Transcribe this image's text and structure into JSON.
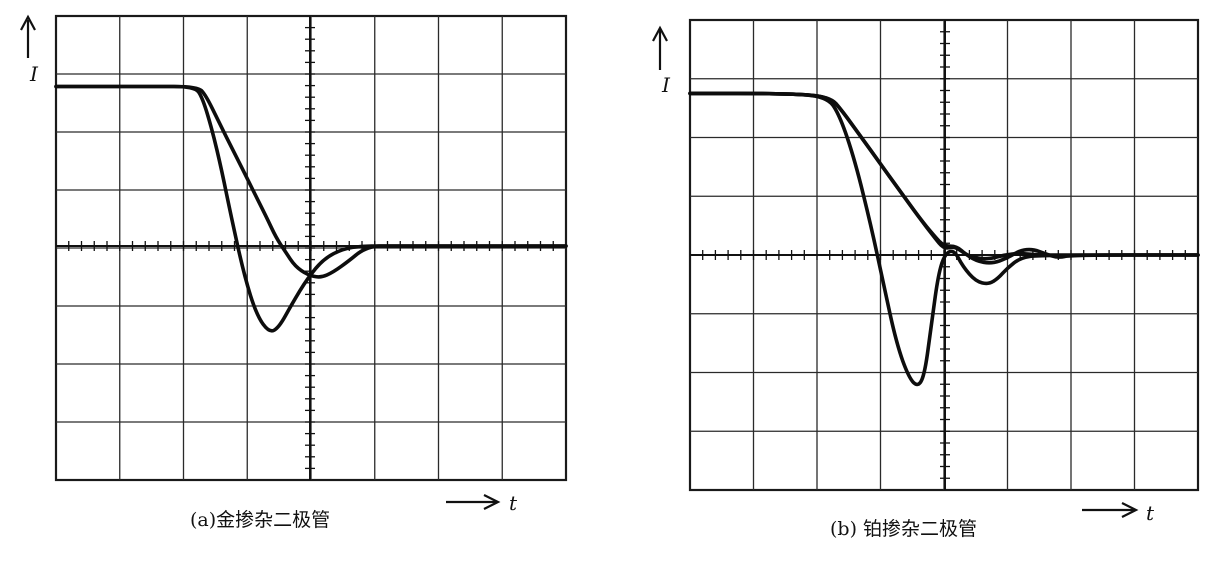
{
  "figure": {
    "panels": [
      {
        "id": "a",
        "caption": "(a)金掺杂二极管",
        "y_axis_label": "I",
        "x_axis_label": "t"
      },
      {
        "id": "b",
        "caption": "(b) 铂掺杂二极管",
        "y_axis_label": "I",
        "x_axis_label": "t"
      }
    ]
  },
  "chart_data": [
    {
      "type": "line",
      "title": "(a)金掺杂二极管",
      "xlabel": "t",
      "ylabel": "I",
      "grid": true,
      "divisions": {
        "x": 8,
        "y": 8
      },
      "xlim": [
        0,
        8
      ],
      "ylim": [
        -4,
        4
      ],
      "series": [
        {
          "x": [
            0,
            1.5,
            2.22,
            2.35,
            2.55,
            2.8,
            3.05,
            3.3,
            3.45,
            3.6,
            3.75,
            3.95,
            4.15,
            4.35,
            4.6,
            4.8,
            5.0,
            5.15,
            8.0
          ],
          "y": [
            2.75,
            2.75,
            2.75,
            2.6,
            2.15,
            1.6,
            1.05,
            0.5,
            0.15,
            -0.1,
            -0.35,
            -0.5,
            -0.55,
            -0.45,
            -0.25,
            -0.07,
            0.0,
            0.0,
            0.0
          ]
        },
        {
          "x": [
            0,
            1.5,
            2.18,
            2.3,
            2.45,
            2.6,
            2.75,
            2.95,
            3.15,
            3.35,
            3.5,
            3.7,
            3.95,
            4.2,
            4.5,
            4.8,
            5.1,
            8.0
          ],
          "y": [
            2.75,
            2.75,
            2.75,
            2.55,
            2.0,
            1.3,
            0.5,
            -0.5,
            -1.2,
            -1.5,
            -1.4,
            -1.0,
            -0.55,
            -0.22,
            -0.05,
            0.0,
            0.0,
            0.0
          ]
        }
      ]
    },
    {
      "type": "line",
      "title": "(b) 铂掺杂二极管",
      "xlabel": "t",
      "ylabel": "I",
      "grid": true,
      "divisions": {
        "x": 8,
        "y": 8
      },
      "xlim": [
        0,
        8
      ],
      "ylim": [
        -4,
        4
      ],
      "series": [
        {
          "x": [
            0,
            1.5,
            2.2,
            2.4,
            2.7,
            3.0,
            3.3,
            3.6,
            3.85,
            4.0,
            4.15,
            4.3,
            4.5,
            4.75,
            5.0,
            5.2,
            5.4,
            5.6,
            5.8,
            6.0,
            8.0
          ],
          "y": [
            2.75,
            2.75,
            2.7,
            2.45,
            2.0,
            1.55,
            1.1,
            0.65,
            0.3,
            0.1,
            0.15,
            0.05,
            -0.1,
            -0.15,
            -0.05,
            0.08,
            0.1,
            0.02,
            -0.05,
            0.0,
            0.0
          ]
        },
        {
          "x": [
            0,
            1.5,
            2.2,
            2.4,
            2.7,
            3.0,
            3.3,
            3.6,
            3.85,
            4.0,
            4.2,
            4.35,
            4.5,
            4.7,
            4.95,
            5.2,
            5.45,
            5.7,
            8.0
          ],
          "y": [
            2.75,
            2.75,
            2.7,
            2.45,
            2.0,
            1.55,
            1.1,
            0.65,
            0.32,
            0.15,
            0.15,
            0.0,
            -0.05,
            -0.07,
            0.0,
            0.03,
            0.0,
            0.0,
            0.0
          ]
        },
        {
          "x": [
            0,
            1.5,
            2.15,
            2.35,
            2.6,
            2.85,
            3.05,
            3.25,
            3.45,
            3.6,
            3.7,
            3.8,
            3.9,
            4.0,
            4.15,
            4.3,
            4.5,
            4.7,
            4.85,
            5.0,
            5.2,
            5.5,
            8.0
          ],
          "y": [
            2.75,
            2.75,
            2.7,
            2.4,
            1.6,
            0.5,
            -0.5,
            -1.5,
            -2.1,
            -2.25,
            -2.0,
            -1.2,
            -0.4,
            0.0,
            0.1,
            -0.2,
            -0.45,
            -0.5,
            -0.4,
            -0.22,
            -0.05,
            0.0,
            0.0
          ]
        }
      ]
    }
  ]
}
